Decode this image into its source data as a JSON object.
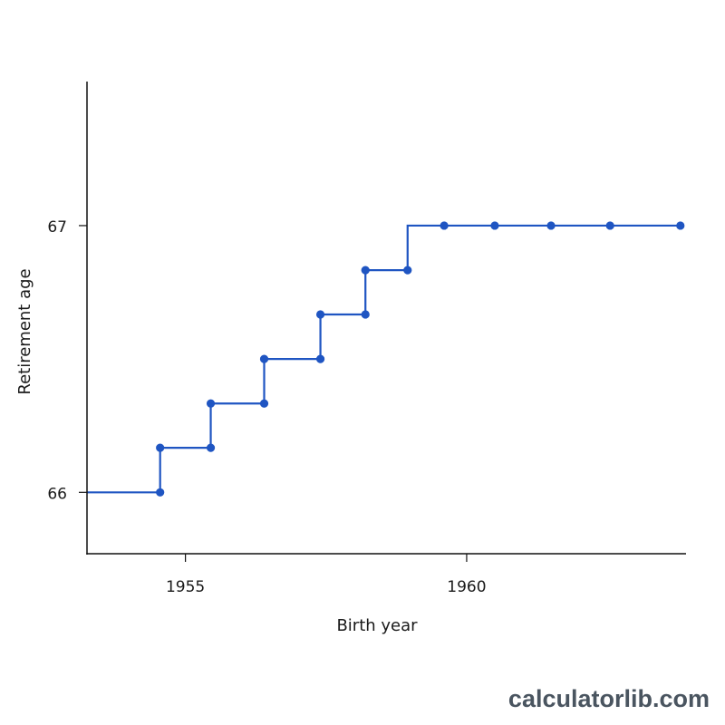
{
  "chart_data": {
    "type": "line",
    "step": "post",
    "xlabel": "Birth year",
    "ylabel": "Retirement age",
    "xlim": [
      1953.25,
      1963.9
    ],
    "ylim": [
      65.77,
      67.54
    ],
    "x_ticks": [
      1955,
      1960
    ],
    "y_ticks": [
      66,
      67
    ],
    "grid": false,
    "series": [
      {
        "x": [
          1953.25,
          1954.55,
          1954.55,
          1955.45,
          1955.45,
          1956.4,
          1956.4,
          1957.4,
          1957.4,
          1958.2,
          1958.2,
          1958.95,
          1958.95,
          1959.6,
          1960.5,
          1961.5,
          1962.55,
          1963.8
        ],
        "y": [
          66.0,
          66.0,
          66.167,
          66.167,
          66.333,
          66.333,
          66.5,
          66.5,
          66.667,
          66.667,
          66.833,
          66.833,
          67.0,
          67.0,
          67.0,
          67.0,
          67.0,
          67.0
        ],
        "color": "#1f55c2"
      }
    ],
    "markers": {
      "x": [
        1954.55,
        1954.55,
        1955.45,
        1955.45,
        1956.4,
        1956.4,
        1957.4,
        1957.4,
        1958.2,
        1958.2,
        1958.95,
        1959.6,
        1960.5,
        1961.5,
        1962.55,
        1963.8
      ],
      "y": [
        66.0,
        66.167,
        66.167,
        66.333,
        66.333,
        66.5,
        66.5,
        66.667,
        66.667,
        66.833,
        66.833,
        67.0,
        67.0,
        67.0,
        67.0,
        67.0
      ]
    }
  },
  "watermark": "calculatorlib.com"
}
